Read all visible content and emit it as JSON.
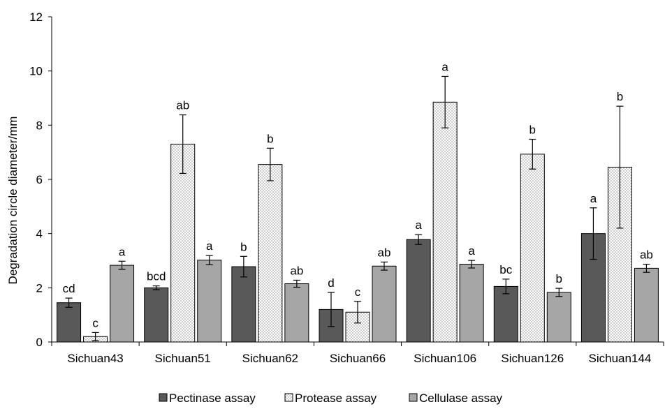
{
  "chart_data": {
    "type": "bar",
    "title": "",
    "xlabel": "",
    "ylabel": "Degradation circle diameter/mm",
    "ylim": [
      0,
      12
    ],
    "yticks": [
      0,
      2,
      4,
      6,
      8,
      10,
      12
    ],
    "grid": false,
    "legend_position": "bottom",
    "categories": [
      "Sichuan43",
      "Sichuan51",
      "Sichuan62",
      "Sichuan66",
      "Sichuan106",
      "Sichuan126",
      "Sichuan144"
    ],
    "series": [
      {
        "name": "Pectinase assay",
        "color": "#595959",
        "pattern": "solid",
        "values": [
          1.45,
          2.0,
          2.78,
          1.2,
          3.78,
          2.05,
          4.0
        ],
        "errors": [
          0.17,
          0.07,
          0.38,
          0.63,
          0.18,
          0.27,
          0.95
        ],
        "labels": [
          "cd",
          "bcd",
          "b",
          "d",
          "a",
          "bc",
          "a"
        ]
      },
      {
        "name": "Protease assay",
        "color": "#ffffff",
        "pattern": "dotted",
        "values": [
          0.2,
          7.3,
          6.55,
          1.1,
          8.85,
          6.93,
          6.45
        ],
        "errors": [
          0.15,
          1.08,
          0.6,
          0.4,
          0.95,
          0.55,
          2.25
        ],
        "labels": [
          "c",
          "ab",
          "b",
          "c",
          "a",
          "b",
          "b"
        ]
      },
      {
        "name": "Cellulase assay",
        "color": "#a6a6a6",
        "pattern": "solid",
        "values": [
          2.83,
          3.02,
          2.15,
          2.8,
          2.87,
          1.83,
          2.72
        ],
        "errors": [
          0.15,
          0.17,
          0.13,
          0.15,
          0.14,
          0.15,
          0.15
        ],
        "labels": [
          "a",
          "a",
          "ab",
          "ab",
          "a",
          "b",
          "ab"
        ]
      }
    ]
  }
}
